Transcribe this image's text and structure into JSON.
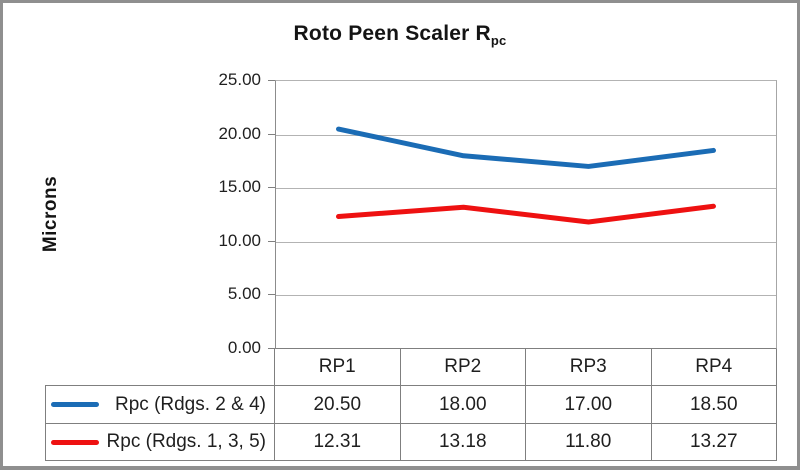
{
  "chart_data": {
    "type": "line",
    "title_main": "Roto Peen Scaler R",
    "title_subscript": "pc",
    "ylabel": "Microns",
    "categories": [
      "RP1",
      "RP2",
      "RP3",
      "RP4"
    ],
    "series": [
      {
        "name": "Rpc (Rdgs. 2 & 4)",
        "color": "#1b6cb5",
        "values": [
          20.5,
          18.0,
          17.0,
          18.5
        ],
        "display_values": [
          "20.50",
          "18.00",
          "17.00",
          "18.50"
        ]
      },
      {
        "name": "Rpc (Rdgs. 1, 3, 5)",
        "color": "#ee1111",
        "values": [
          12.31,
          13.18,
          11.8,
          13.27
        ],
        "display_values": [
          "12.31",
          "13.18",
          "11.80",
          "13.27"
        ]
      }
    ],
    "ylim": [
      0,
      25
    ],
    "ytick_interval": 5,
    "yticks": [
      "25.00",
      "20.00",
      "15.00",
      "10.00",
      "5.00",
      "0.00"
    ],
    "grid": "horizontal",
    "legend_position": "left-of-data-table",
    "line_width": 5
  }
}
